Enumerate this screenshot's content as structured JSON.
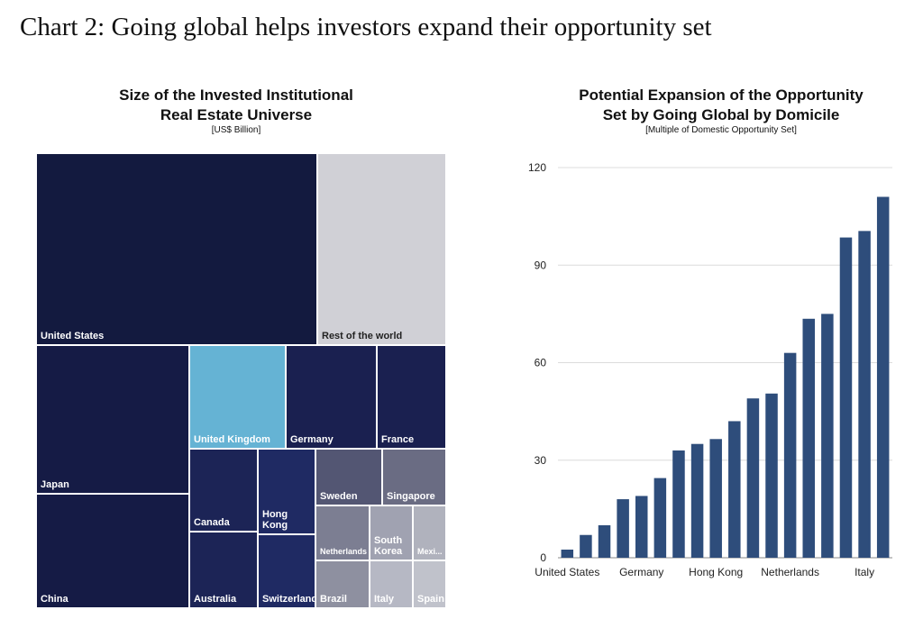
{
  "page_title": "Chart 2: Going global helps investors expand their opportunity set",
  "chart_data": [
    {
      "type": "treemap",
      "title_line1": "Size of the Invested Institutional",
      "title_line2": "Real Estate Universe",
      "subtitle": "[US$ Billion]",
      "tiles": [
        {
          "label": "United States",
          "color": "#131a3f"
        },
        {
          "label": "Rest of the world",
          "color": "#d0d0d6",
          "dark_text": true
        },
        {
          "label": "Japan",
          "color": "#151b45"
        },
        {
          "label": "China",
          "color": "#151b45"
        },
        {
          "label": "United Kingdom",
          "color": "#65b3d4"
        },
        {
          "label": "Germany",
          "color": "#1a2050"
        },
        {
          "label": "France",
          "color": "#1a2050"
        },
        {
          "label": "Canada",
          "color": "#1c2456"
        },
        {
          "label": "Hong Kong",
          "color": "#1f2a63"
        },
        {
          "label": "Australia",
          "color": "#1c2456"
        },
        {
          "label": "Switzerland",
          "color": "#1f2a63"
        },
        {
          "label": "Sweden",
          "color": "#535673"
        },
        {
          "label": "Singapore",
          "color": "#6a6c83"
        },
        {
          "label": "Netherlands",
          "color": "#7c7e92"
        },
        {
          "label": "South Korea",
          "color": "#a0a2b1"
        },
        {
          "label": "Mexi...",
          "color": "#b0b2bd"
        },
        {
          "label": "Brazil",
          "color": "#8e90a0"
        },
        {
          "label": "Italy",
          "color": "#b6b8c4"
        },
        {
          "label": "Spain",
          "color": "#c0c2cb"
        }
      ]
    },
    {
      "type": "bar",
      "title_line1": "Potential Expansion of the Opportunity",
      "title_line2": "Set by Going Global by Domicile",
      "subtitle": "[Multiple of Domestic Opportunity Set]",
      "bar_color": "#2e4d7b",
      "ylim": [
        0,
        120
      ],
      "yticks": [
        0,
        30,
        60,
        90,
        120
      ],
      "tick_labels": [
        {
          "label": "United States",
          "index": 0
        },
        {
          "label": "Germany",
          "index": 4
        },
        {
          "label": "Hong Kong",
          "index": 8
        },
        {
          "label": "Netherlands",
          "index": 12
        },
        {
          "label": "Italy",
          "index": 16
        }
      ],
      "values": [
        2.5,
        7,
        10,
        18,
        19,
        24.5,
        33,
        35,
        36.5,
        42,
        49,
        50.5,
        63,
        73.5,
        75,
        98.5,
        100.5,
        111
      ]
    }
  ]
}
